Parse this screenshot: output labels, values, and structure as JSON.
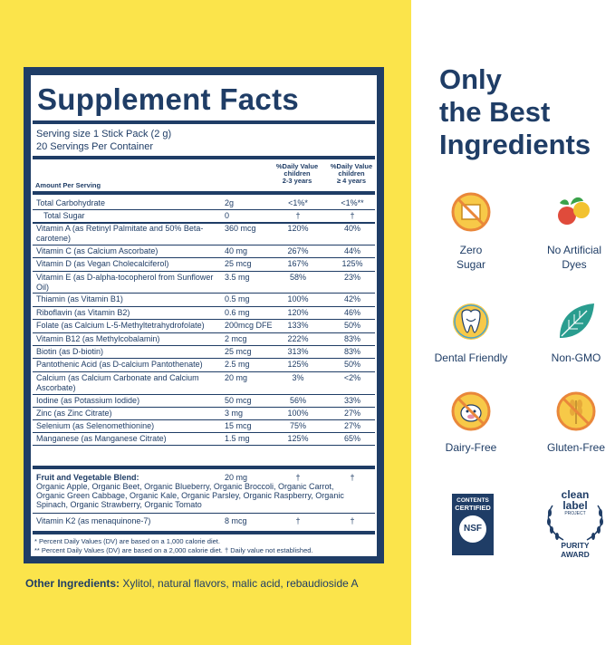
{
  "supplement_facts": {
    "title": "Supplement Facts",
    "serving_size": "Serving size 1 Stick Pack (2 g)",
    "servings_per_container": "20 Servings Per Container",
    "amount_per_serving": "Amount Per Serving",
    "dv_children_2_3_header_lines": [
      "%Daily Value",
      "children",
      "2-3 years"
    ],
    "dv_children_4_header_lines": [
      "%Daily Value",
      "children",
      "≥ 4 years"
    ],
    "rows": [
      {
        "name": "Total Carbohydrate",
        "amount": "2g",
        "dv1": "<1%*",
        "dv2": "<1%**"
      },
      {
        "name": "   Total Sugar",
        "amount": "0",
        "dv1": "†",
        "dv2": "†"
      },
      {
        "name": "Vitamin A (as Retinyl Palmitate and 50% Beta-carotene)",
        "amount": "360 mcg",
        "dv1": "120%",
        "dv2": "40%"
      },
      {
        "name": "Vitamin C (as Calcium Ascorbate)",
        "amount": "40 mg",
        "dv1": "267%",
        "dv2": "44%"
      },
      {
        "name": "Vitamin D (as Vegan Cholecalciferol)",
        "amount": "25 mcg",
        "dv1": "167%",
        "dv2": "125%"
      },
      {
        "name": "Vitamin E (as D-alpha-tocopherol from Sunflower Oil)",
        "amount": "3.5 mg",
        "dv1": "58%",
        "dv2": "23%"
      },
      {
        "name": "Thiamin (as Vitamin B1)",
        "amount": "0.5 mg",
        "dv1": "100%",
        "dv2": "42%"
      },
      {
        "name": "Riboflavin (as Vitamin B2)",
        "amount": "0.6 mg",
        "dv1": "120%",
        "dv2": "46%"
      },
      {
        "name": "Folate (as Calcium L-5-Methyltetrahydrofolate)",
        "amount": "200mcg DFE",
        "dv1": "133%",
        "dv2": "50%"
      },
      {
        "name": "Vitamin B12 (as Methylcobalamin)",
        "amount": "2 mcg",
        "dv1": "222%",
        "dv2": "83%"
      },
      {
        "name": "Biotin (as D-biotin)",
        "amount": "25 mcg",
        "dv1": "313%",
        "dv2": "83%"
      },
      {
        "name": "Pantothenic Acid (as D-calcium Pantothenate)",
        "amount": "2.5 mg",
        "dv1": "125%",
        "dv2": "50%"
      },
      {
        "name": "Calcium (as Calcium Carbonate and Calcium Ascorbate)",
        "amount": "20 mg",
        "dv1": "3%",
        "dv2": "<2%"
      },
      {
        "name": "Iodine (as Potassium Iodide)",
        "amount": "50 mcg",
        "dv1": "56%",
        "dv2": "33%"
      },
      {
        "name": "Zinc (as Zinc Citrate)",
        "amount": "3 mg",
        "dv1": "100%",
        "dv2": "27%"
      },
      {
        "name": "Selenium (as Selenomethionine)",
        "amount": "15 mcg",
        "dv1": "75%",
        "dv2": "27%"
      },
      {
        "name": "Manganese (as Manganese Citrate)",
        "amount": "1.5 mg",
        "dv1": "125%",
        "dv2": "65%"
      }
    ],
    "blend": {
      "name": "Fruit and Vegetable Blend:",
      "amount": "20 mg",
      "dv1": "†",
      "dv2": "†",
      "ingredients": "Organic Apple, Organic Beet, Organic Blueberry, Organic Broccoli, Organic Carrot, Organic Green Cabbage, Organic Kale, Organic Parsley, Organic Raspberry, Organic Spinach, Organic Strawberry, Organic Tomato"
    },
    "k2": {
      "name": "Vitamin K2 (as menaquinone-7)",
      "amount": "8 mcg",
      "dv1": "†",
      "dv2": "†"
    },
    "footnote1": "* Percent Daily Values (DV) are based on a 1,000 calorie diet.",
    "footnote2": "** Percent Daily Values (DV) are based on a 2,000 calorie diet.   † Daily value not established."
  },
  "other_ingredients": {
    "label": "Other Ingredients:",
    "text": " Xylitol, natural flavors, malic acid, rebaudioside A"
  },
  "headline_lines": [
    "Only",
    "the Best",
    "Ingredients"
  ],
  "features": [
    {
      "label_lines": [
        "Zero",
        "Sugar"
      ],
      "icon": "no-sugar-icon"
    },
    {
      "label_lines": [
        "No Artificial",
        "Dyes"
      ],
      "icon": "fruit-veg-icon"
    },
    {
      "label_lines": [
        "Dental Friendly"
      ],
      "icon": "tooth-icon"
    },
    {
      "label_lines": [
        "Non-GMO"
      ],
      "icon": "leaf-icon"
    },
    {
      "label_lines": [
        "Dairy-Free"
      ],
      "icon": "no-dairy-icon"
    },
    {
      "label_lines": [
        "Gluten-Free"
      ],
      "icon": "no-gluten-icon"
    }
  ],
  "badges": {
    "nsf_lines": [
      "CONTENTS",
      "CERTIFIED"
    ],
    "nsf_logo": "NSF",
    "clean_label_lines": [
      "clean",
      "label"
    ],
    "clean_label_project": "PROJECT",
    "purity_lines": [
      "PURITY",
      "AWARD"
    ]
  },
  "colors": {
    "navy": "#1f3d66",
    "yellow": "#fbe44b",
    "teal": "#2a9d8f"
  }
}
